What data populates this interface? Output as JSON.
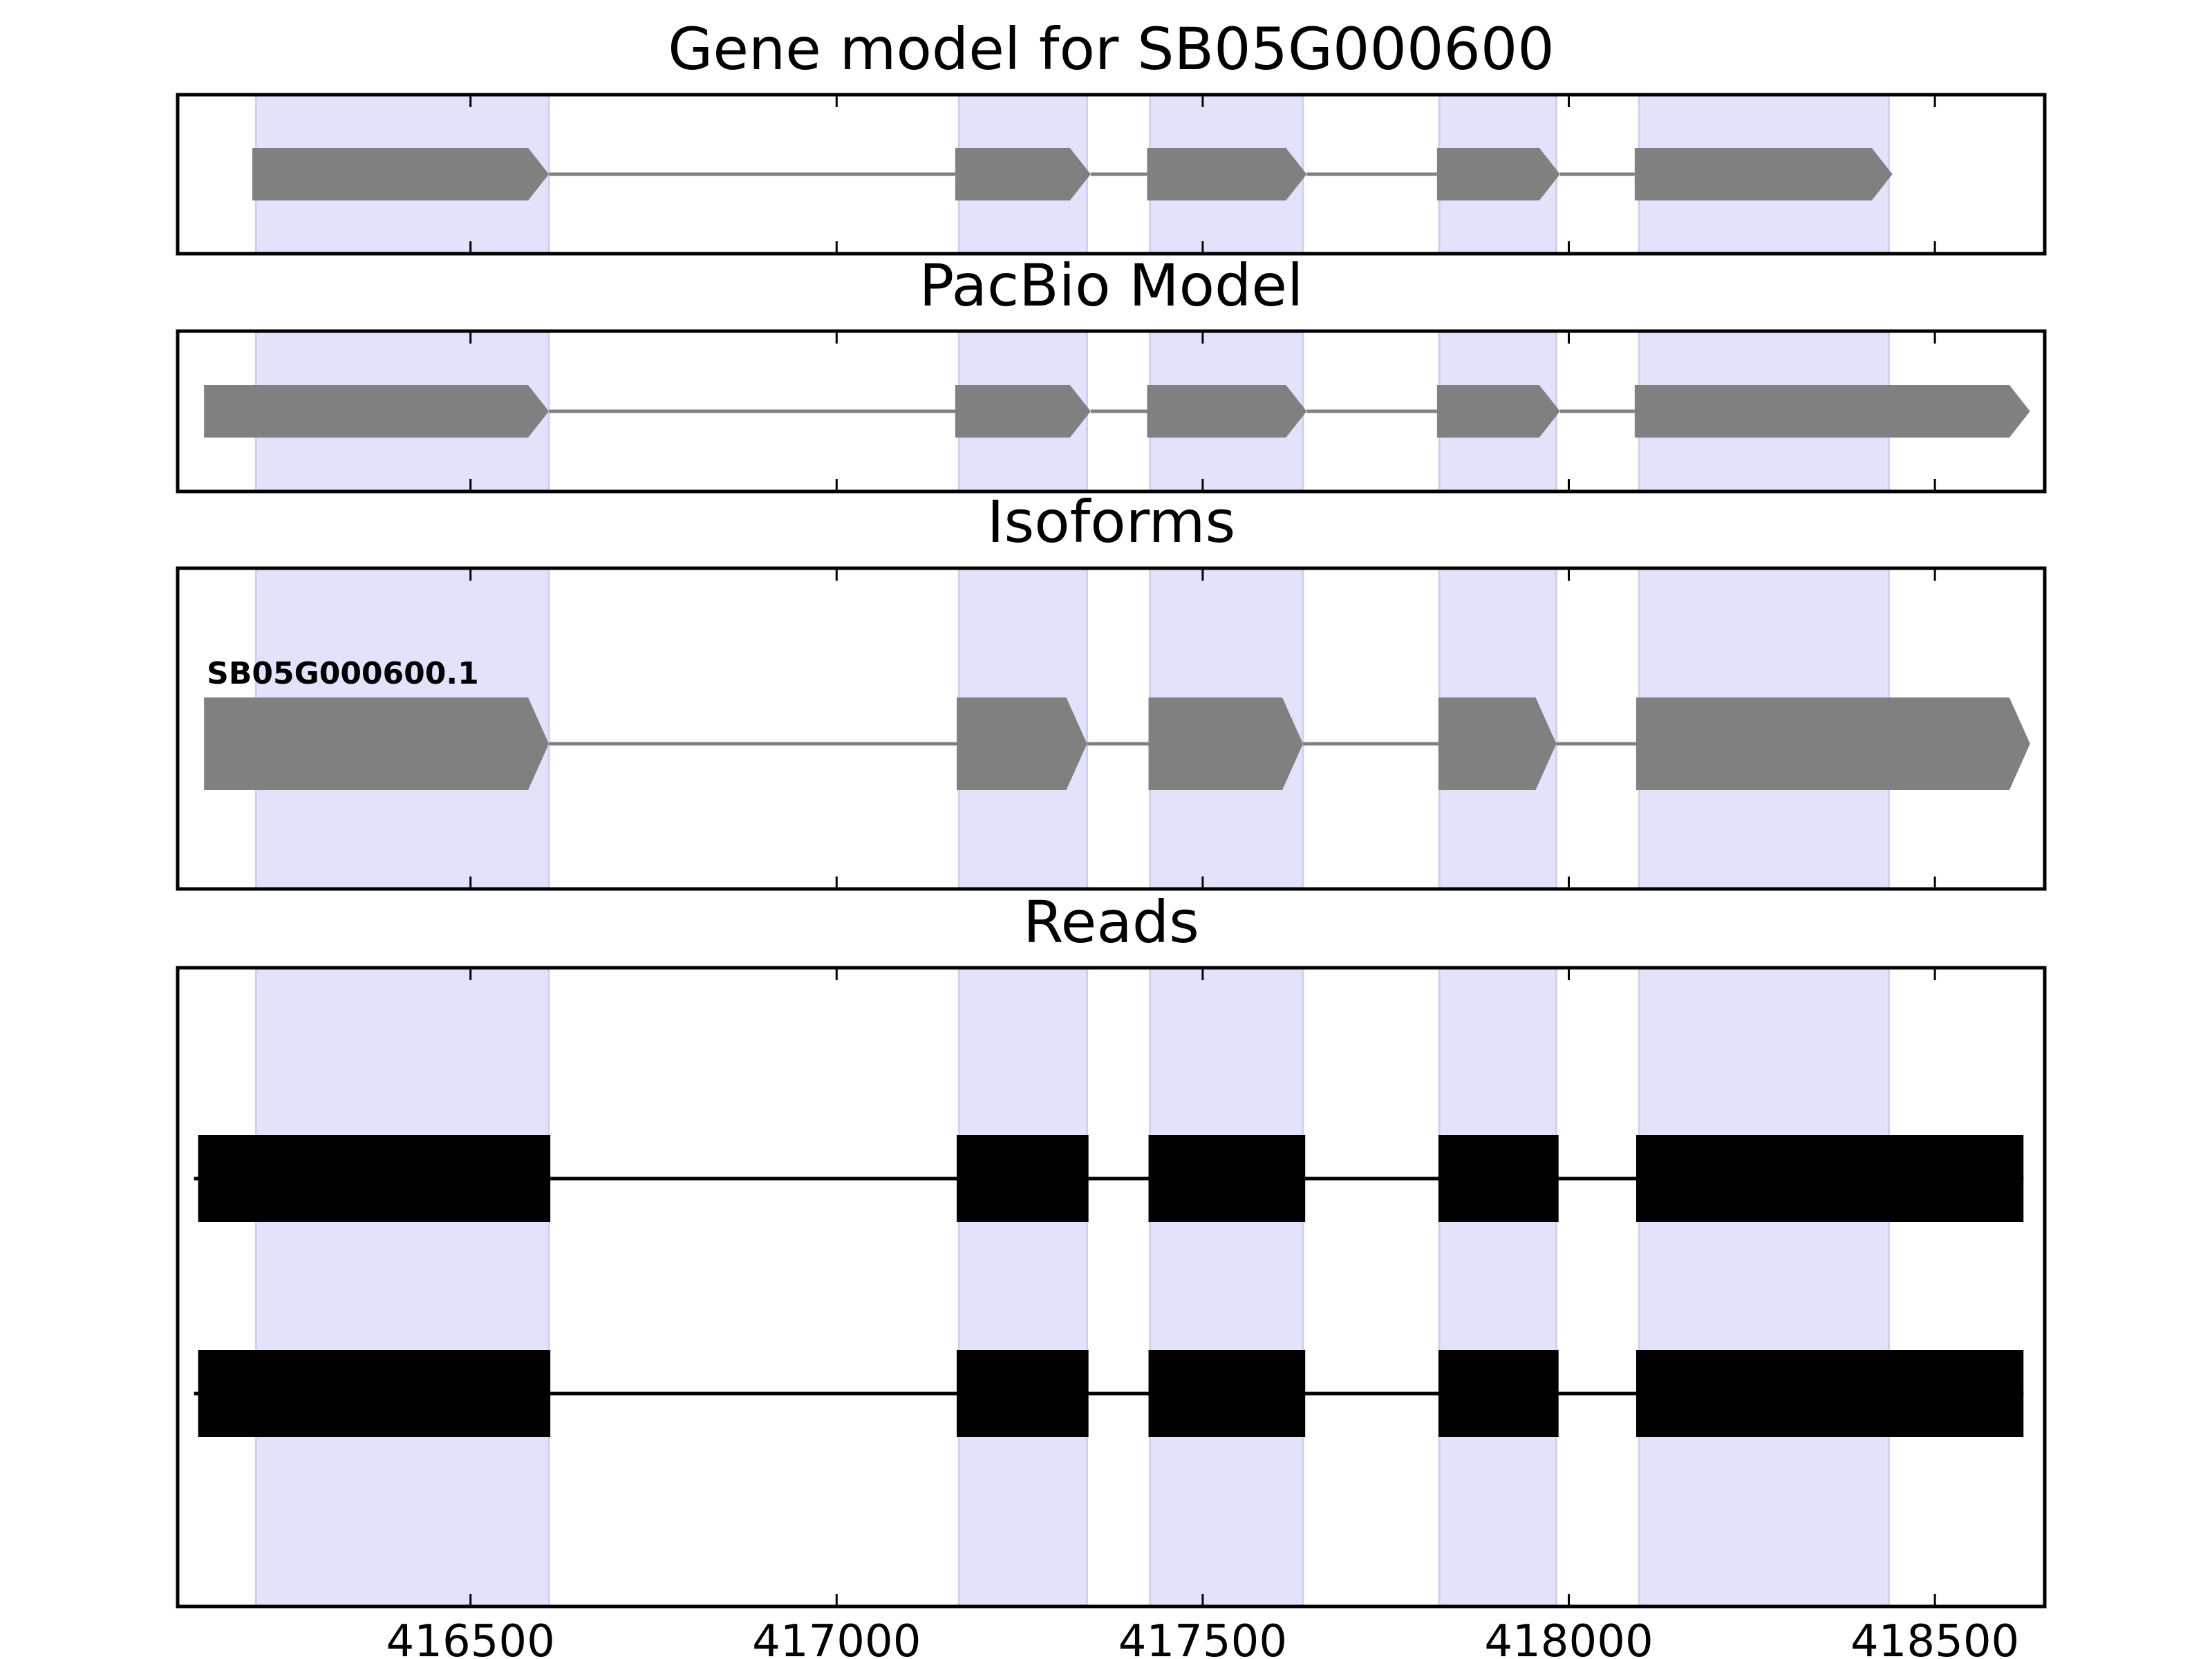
{
  "chart_data": {
    "type": "gene-track",
    "xlim": [
      416100,
      418650
    ],
    "xticks": [
      416500,
      417000,
      417500,
      418000,
      418500
    ],
    "xtick_labels": [
      "416500",
      "417000",
      "417500",
      "418000",
      "418500"
    ],
    "highlight_color": "#e2e2fb",
    "highlight_regions": [
      [
        416207,
        416607
      ],
      [
        417167,
        417342
      ],
      [
        417428,
        417637
      ],
      [
        417823,
        417983
      ],
      [
        418096,
        418437
      ]
    ],
    "panels": [
      {
        "title": "Gene model for SB05G000600",
        "kind": "model",
        "color": "#808080",
        "features": [
          {
            "label": "",
            "exons": [
              [
                416202,
                416607
              ],
              [
                417162,
                417347
              ],
              [
                417424,
                417642
              ],
              [
                417820,
                417988
              ],
              [
                418090,
                418442
              ]
            ]
          }
        ]
      },
      {
        "title": "PacBio Model",
        "kind": "model",
        "color": "#808080",
        "features": [
          {
            "label": "",
            "exons": [
              [
                416136,
                416607
              ],
              [
                417162,
                417347
              ],
              [
                417424,
                417642
              ],
              [
                417820,
                417988
              ],
              [
                418090,
                418630
              ]
            ]
          }
        ]
      },
      {
        "title": "Isoforms",
        "kind": "model",
        "color": "#808080",
        "features": [
          {
            "label": "SB05G000600.1",
            "exons": [
              [
                416136,
                416607
              ],
              [
                417164,
                417342
              ],
              [
                417426,
                417637
              ],
              [
                417822,
                417983
              ],
              [
                418092,
                418630
              ]
            ]
          }
        ]
      },
      {
        "title": "Reads",
        "kind": "reads",
        "color": "#000000",
        "features": [
          {
            "label": "",
            "exons": [
              [
                416128,
                416609
              ],
              [
                417164,
                417344
              ],
              [
                417426,
                417640
              ],
              [
                417822,
                417986
              ],
              [
                418092,
                418621
              ]
            ]
          },
          {
            "label": "",
            "exons": [
              [
                416128,
                416609
              ],
              [
                417164,
                417344
              ],
              [
                417426,
                417640
              ],
              [
                417822,
                417986
              ],
              [
                418092,
                418621
              ]
            ]
          }
        ]
      }
    ]
  }
}
